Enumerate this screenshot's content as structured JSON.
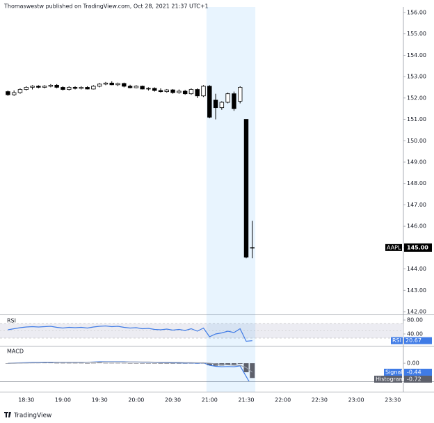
{
  "header": "Thomaswestw published on TradingView.com, Oct 28, 2021 21:37 UTC+1",
  "footer": "TradingView",
  "chart_data": [
    {
      "type": "candlestick",
      "categories": [
        null,
        null,
        null,
        "18:30",
        null,
        null,
        null,
        null,
        null,
        "19:00",
        null,
        null,
        null,
        null,
        null,
        "19:30",
        null,
        null,
        null,
        null,
        null,
        "20:00",
        null,
        null,
        null,
        null,
        null,
        "20:30",
        null,
        null,
        null,
        null,
        null,
        "21:00",
        null,
        null,
        null,
        null,
        null,
        "21:30",
        null,
        null,
        null,
        null,
        null,
        "22:00",
        null,
        null,
        null,
        null,
        null,
        "22:30",
        null,
        null,
        null,
        null,
        null,
        "23:00",
        null,
        null,
        null,
        null,
        null,
        "23:30",
        null
      ],
      "series": [
        {
          "name": "AAPL",
          "last_label": "145.00",
          "open": [
            152.3,
            152.15,
            152.25,
            152.4,
            152.5,
            152.55,
            152.5,
            152.55,
            152.6,
            152.5,
            152.4,
            152.5,
            152.45,
            152.5,
            152.42,
            152.55,
            152.65,
            152.7,
            152.62,
            152.68,
            152.55,
            152.48,
            152.55,
            152.42,
            152.45,
            152.35,
            152.3,
            152.38,
            152.25,
            152.32,
            152.2,
            152.4,
            152.1,
            152.55,
            151.9,
            151.55,
            151.8,
            152.2,
            151.85,
            151.0,
            145.0,
            null,
            null,
            null,
            null,
            null,
            null,
            null,
            null,
            null,
            null,
            null,
            null,
            null,
            null,
            null,
            null,
            null,
            null,
            null,
            null,
            null,
            null,
            null,
            null
          ],
          "high": [
            152.35,
            152.35,
            152.45,
            152.55,
            152.6,
            152.6,
            152.6,
            152.65,
            152.65,
            152.55,
            152.55,
            152.55,
            152.55,
            152.55,
            152.6,
            152.7,
            152.75,
            152.78,
            152.72,
            152.72,
            152.62,
            152.6,
            152.58,
            152.5,
            152.5,
            152.45,
            152.42,
            152.42,
            152.4,
            152.38,
            152.45,
            152.45,
            152.6,
            152.6,
            152.2,
            151.85,
            152.25,
            152.3,
            152.55,
            151.0,
            146.25,
            null,
            null,
            null,
            null,
            null,
            null,
            null,
            null,
            null,
            null,
            null,
            null,
            null,
            null,
            null,
            null,
            null,
            null,
            null,
            null,
            null,
            null,
            null,
            null
          ],
          "low": [
            152.1,
            152.1,
            152.2,
            152.35,
            152.4,
            152.45,
            152.45,
            152.5,
            152.45,
            152.35,
            152.35,
            152.4,
            152.4,
            152.4,
            152.4,
            152.5,
            152.6,
            152.6,
            152.55,
            152.5,
            152.45,
            152.45,
            152.4,
            152.35,
            152.3,
            152.25,
            152.25,
            152.2,
            152.2,
            152.15,
            152.15,
            152.0,
            152.05,
            151.05,
            151.0,
            151.45,
            151.75,
            151.4,
            151.75,
            144.5,
            144.5,
            null,
            null,
            null,
            null,
            null,
            null,
            null,
            null,
            null,
            null,
            null,
            null,
            null,
            null,
            null,
            null,
            null,
            null,
            null,
            null,
            null,
            null,
            null,
            null
          ],
          "close": [
            152.15,
            152.25,
            152.4,
            152.5,
            152.55,
            152.5,
            152.55,
            152.6,
            152.5,
            152.4,
            152.5,
            152.45,
            152.5,
            152.42,
            152.55,
            152.65,
            152.7,
            152.62,
            152.68,
            152.55,
            152.48,
            152.55,
            152.42,
            152.45,
            152.35,
            152.3,
            152.38,
            152.25,
            152.32,
            152.2,
            152.4,
            152.1,
            152.55,
            151.1,
            151.55,
            151.8,
            152.2,
            151.5,
            152.5,
            144.55,
            145.0,
            null,
            null,
            null,
            null,
            null,
            null,
            null,
            null,
            null,
            null,
            null,
            null,
            null,
            null,
            null,
            null,
            null,
            null,
            null,
            null,
            null,
            null,
            null,
            null
          ],
          "up_color": "#ffffff",
          "down_color": "#000000"
        }
      ],
      "ylim": [
        141.87,
        156.26
      ],
      "yticks": [
        {
          "value": 142,
          "label": "142.00"
        },
        {
          "value": 143,
          "label": "143.00"
        },
        {
          "value": 144,
          "label": "144.00"
        },
        {
          "value": 145,
          "label": "145.00"
        },
        {
          "value": 146,
          "label": "146.00"
        },
        {
          "value": 147,
          "label": "147.00"
        },
        {
          "value": 148,
          "label": "148.00"
        },
        {
          "value": 149,
          "label": "149.00"
        },
        {
          "value": 150,
          "label": "150.00"
        },
        {
          "value": 151,
          "label": "151.00"
        },
        {
          "value": 152,
          "label": "152.00"
        },
        {
          "value": 153,
          "label": "153.00"
        },
        {
          "value": 154,
          "label": "154.00"
        },
        {
          "value": 155,
          "label": "155.00"
        },
        {
          "value": 156,
          "label": "156.00"
        }
      ],
      "grid": false
    },
    {
      "type": "line",
      "title": "RSI",
      "series": [
        {
          "name": "RSI",
          "color": "#3f7be6",
          "values": [
            52,
            55,
            58,
            60,
            61,
            60,
            61,
            62,
            59,
            57,
            59,
            58,
            59,
            57,
            60,
            62,
            63,
            61,
            62,
            59,
            57,
            58,
            55,
            56,
            53,
            52,
            54,
            51,
            53,
            50,
            55,
            48,
            57,
            32,
            40,
            43,
            48,
            44,
            55,
            19,
            20.67,
            null,
            null,
            null,
            null,
            null,
            null,
            null,
            null,
            null,
            null,
            null,
            null,
            null,
            null,
            null,
            null,
            null,
            null,
            null,
            null,
            null,
            null,
            null,
            null
          ]
        }
      ],
      "ylim": [
        6,
        90
      ],
      "yticks": [
        {
          "value": 80,
          "label": "80.00"
        },
        {
          "value": 40,
          "label": "40.00"
        }
      ]
    },
    {
      "type": "macd",
      "title": "MACD",
      "series": [
        {
          "name": "Histogram",
          "color": "#5d606b",
          "values": [
            0.0,
            0.01,
            0.01,
            0.02,
            0.02,
            0.02,
            0.02,
            0.02,
            0.01,
            0.01,
            0.01,
            0.01,
            0.01,
            0.0,
            0.01,
            0.02,
            0.01,
            0.01,
            0.01,
            0.01,
            0.0,
            0.0,
            -0.01,
            -0.01,
            -0.01,
            -0.02,
            -0.02,
            -0.02,
            -0.02,
            -0.02,
            -0.01,
            -0.02,
            0.0,
            -0.1,
            -0.12,
            -0.11,
            -0.08,
            -0.07,
            -0.03,
            -0.44,
            -0.72,
            null,
            null,
            null,
            null,
            null,
            null,
            null,
            null,
            null,
            null,
            null,
            null,
            null,
            null,
            null,
            null,
            null,
            null,
            null,
            null,
            null,
            null,
            null,
            null
          ]
        },
        {
          "color": "#3f7be6",
          "values": [
            0.0,
            0.01,
            0.02,
            0.03,
            0.04,
            0.04,
            0.05,
            0.05,
            0.05,
            0.05,
            0.05,
            0.05,
            0.05,
            0.05,
            0.06,
            0.07,
            0.07,
            0.07,
            0.07,
            0.07,
            0.06,
            0.06,
            0.05,
            0.05,
            0.04,
            0.03,
            0.03,
            0.02,
            0.02,
            0.01,
            0.02,
            0.0,
            0.02,
            -0.1,
            -0.15,
            -0.17,
            -0.16,
            -0.17,
            -0.13,
            -0.65,
            -1.16,
            null,
            null,
            null,
            null,
            null,
            null,
            null,
            null,
            null,
            null,
            null,
            null,
            null,
            null,
            null,
            null,
            null,
            null,
            null,
            null,
            null,
            null,
            null,
            null
          ]
        },
        {
          "name": "Signal",
          "color": "#9aa0ae",
          "values": [
            0.0,
            0.0,
            0.01,
            0.01,
            0.02,
            0.02,
            0.03,
            0.03,
            0.04,
            0.04,
            0.04,
            0.04,
            0.04,
            0.05,
            0.05,
            0.05,
            0.06,
            0.06,
            0.06,
            0.06,
            0.06,
            0.06,
            0.06,
            0.06,
            0.05,
            0.05,
            0.05,
            0.04,
            0.04,
            0.03,
            0.03,
            0.02,
            0.02,
            0.0,
            -0.03,
            -0.06,
            -0.08,
            -0.1,
            -0.1,
            -0.21,
            -0.44,
            null,
            null,
            null,
            null,
            null,
            null,
            null,
            null,
            null,
            null,
            null,
            null,
            null,
            null,
            null,
            null,
            null,
            null,
            null,
            null,
            null,
            null,
            null,
            null
          ]
        }
      ],
      "ylim": [
        -0.88,
        0.75
      ],
      "yticks": [
        {
          "value": 0,
          "label": "0.00"
        }
      ]
    }
  ]
}
